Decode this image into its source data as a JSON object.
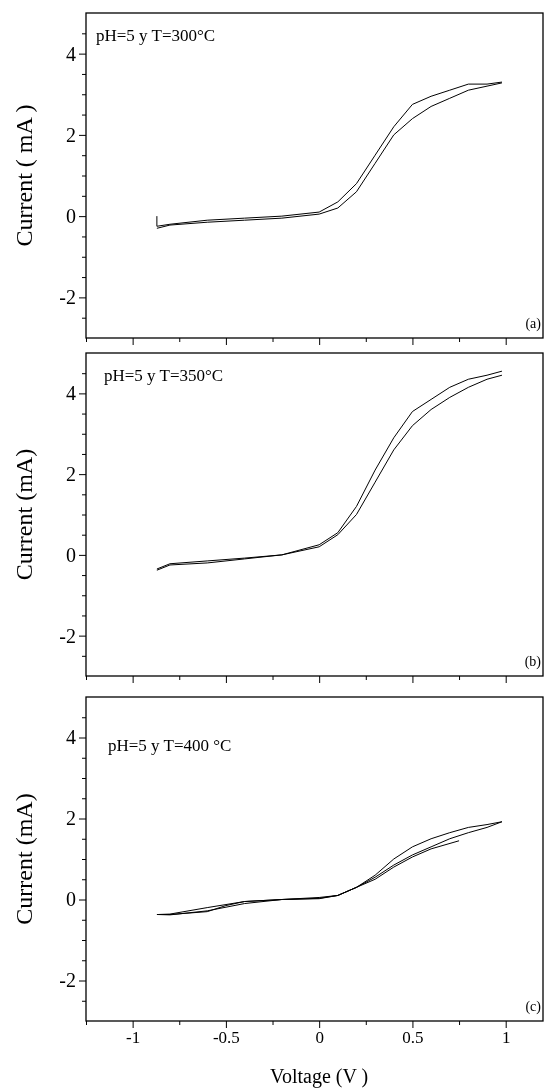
{
  "chart_data": [
    {
      "type": "line",
      "ylabel": "Current ( mA )",
      "annotations": [
        "pH=5 y T=300°C",
        "(a)"
      ],
      "xlim": [
        -1.25,
        1.2
      ],
      "ylim": [
        -3,
        5
      ],
      "xticks": [
        {
          "value": -1.25,
          "label": null
        },
        {
          "value": -1,
          "label": null
        },
        {
          "value": -0.75,
          "label": null
        },
        {
          "value": -0.5,
          "label": null
        },
        {
          "value": -0.25,
          "label": null
        },
        {
          "value": 0,
          "label": null
        },
        {
          "value": 0.25,
          "label": null
        },
        {
          "value": 0.5,
          "label": null
        },
        {
          "value": 0.75,
          "label": null
        },
        {
          "value": 1,
          "label": null
        }
      ],
      "yticks": [
        {
          "value": -2.5,
          "label": null
        },
        -2,
        {
          "value": -1.5,
          "label": null
        },
        {
          "value": -1,
          "label": null
        },
        {
          "value": -0.5,
          "label": null
        },
        0,
        {
          "value": 0.5,
          "label": null
        },
        {
          "value": 1,
          "label": null
        },
        {
          "value": 1.5,
          "label": null
        },
        2,
        {
          "value": 2.5,
          "label": null
        },
        {
          "value": 3,
          "label": null
        },
        {
          "value": 3.5,
          "label": null
        },
        4,
        {
          "value": 4.5,
          "label": null
        }
      ],
      "tick_labels": "y",
      "marker": "none",
      "line_style": "solid",
      "series": [
        {
          "color": "#000000",
          "x": [
            -0.87,
            -0.8,
            -0.6,
            -0.4,
            -0.2,
            0,
            0.1,
            0.2,
            0.3,
            0.4,
            0.5,
            0.6,
            0.7,
            0.8,
            0.9,
            0.98
          ],
          "values": [
            -0.3,
            -0.22,
            -0.15,
            -0.1,
            -0.05,
            0.05,
            0.2,
            0.6,
            1.3,
            2.0,
            2.4,
            2.7,
            2.9,
            3.1,
            3.2,
            3.28
          ]
        },
        {
          "color": "#000000",
          "x": [
            0.98,
            0.9,
            0.8,
            0.7,
            0.6,
            0.5,
            0.4,
            0.3,
            0.2,
            0.1,
            0,
            -0.2,
            -0.4,
            -0.6,
            -0.8,
            -0.87,
            -0.87
          ],
          "values": [
            3.3,
            3.25,
            3.25,
            3.1,
            2.95,
            2.75,
            2.2,
            1.5,
            0.8,
            0.35,
            0.1,
            0,
            -0.05,
            -0.1,
            -0.2,
            -0.25,
            0
          ]
        }
      ]
    },
    {
      "type": "line",
      "ylabel": "Current (mA)",
      "annotations": [
        "pH=5 y T=350°C",
        "(b)"
      ],
      "xlim": [
        -1.25,
        1.2
      ],
      "ylim": [
        -3,
        5
      ],
      "xticks": [
        {
          "value": -1.25,
          "label": null
        },
        {
          "value": -1,
          "label": null
        },
        {
          "value": -0.75,
          "label": null
        },
        {
          "value": -0.5,
          "label": null
        },
        {
          "value": -0.25,
          "label": null
        },
        {
          "value": 0,
          "label": null
        },
        {
          "value": 0.25,
          "label": null
        },
        {
          "value": 0.5,
          "label": null
        },
        {
          "value": 0.75,
          "label": null
        },
        {
          "value": 1,
          "label": null
        }
      ],
      "yticks": [
        {
          "value": -2.5,
          "label": null
        },
        -2,
        {
          "value": -1.5,
          "label": null
        },
        {
          "value": -1,
          "label": null
        },
        {
          "value": -0.5,
          "label": null
        },
        0,
        {
          "value": 0.5,
          "label": null
        },
        {
          "value": 1,
          "label": null
        },
        {
          "value": 1.5,
          "label": null
        },
        2,
        {
          "value": 2.5,
          "label": null
        },
        {
          "value": 3,
          "label": null
        },
        {
          "value": 3.5,
          "label": null
        },
        4,
        {
          "value": 4.5,
          "label": null
        }
      ],
      "tick_labels": "y",
      "marker": "none",
      "line_style": "solid",
      "series": [
        {
          "color": "#000000",
          "x": [
            -0.87,
            -0.8,
            -0.6,
            -0.4,
            -0.2,
            0,
            0.1,
            0.2,
            0.3,
            0.4,
            0.5,
            0.6,
            0.7,
            0.8,
            0.9,
            0.98
          ],
          "values": [
            -0.38,
            -0.25,
            -0.2,
            -0.1,
            0,
            0.2,
            0.5,
            1.0,
            1.8,
            2.6,
            3.2,
            3.6,
            3.9,
            4.15,
            4.35,
            4.45
          ]
        },
        {
          "color": "#000000",
          "x": [
            0.98,
            0.9,
            0.8,
            0.7,
            0.6,
            0.5,
            0.4,
            0.3,
            0.2,
            0.1,
            0,
            -0.2,
            -0.4,
            -0.6,
            -0.8,
            -0.87
          ],
          "values": [
            4.55,
            4.45,
            4.35,
            4.15,
            3.85,
            3.55,
            2.9,
            2.1,
            1.2,
            0.55,
            0.25,
            0,
            -0.08,
            -0.15,
            -0.22,
            -0.35
          ]
        }
      ]
    },
    {
      "type": "line",
      "xlabel": "Voltage (V )",
      "ylabel": "Current (mA)",
      "annotations": [
        "pH=5 y T=400 °C",
        "(c)"
      ],
      "xlim": [
        -1.25,
        1.2
      ],
      "ylim": [
        -3,
        5
      ],
      "xticks": [
        {
          "value": -1.25,
          "label": null
        },
        -1,
        {
          "value": -0.75,
          "label": null
        },
        -0.5,
        {
          "value": -0.25,
          "label": null
        },
        0,
        {
          "value": 0.25,
          "label": null
        },
        0.5,
        {
          "value": 0.75,
          "label": null
        },
        1
      ],
      "yticks": [
        {
          "value": -2.5,
          "label": null
        },
        -2,
        {
          "value": -1.5,
          "label": null
        },
        {
          "value": -1,
          "label": null
        },
        {
          "value": -0.5,
          "label": null
        },
        0,
        {
          "value": 0.5,
          "label": null
        },
        {
          "value": 1,
          "label": null
        },
        {
          "value": 1.5,
          "label": null
        },
        2,
        {
          "value": 2.5,
          "label": null
        },
        {
          "value": 3,
          "label": null
        },
        {
          "value": 3.5,
          "label": null
        },
        4,
        {
          "value": 4.5,
          "label": null
        }
      ],
      "marker": "none",
      "line_style": "solid",
      "series": [
        {
          "color": "#000000",
          "x": [
            -0.87,
            -0.8,
            -0.6,
            -0.4,
            -0.2,
            0,
            0.1,
            0.2,
            0.3,
            0.4,
            0.5,
            0.6,
            0.7,
            0.8,
            0.9,
            0.98,
            0.9,
            0.8,
            0.7,
            0.6,
            0.5,
            0.4,
            0.3,
            0.2,
            0.1,
            0,
            -0.2,
            -0.4,
            -0.6,
            -0.8,
            -0.86,
            -0.8,
            -0.6,
            -0.5,
            -0.4,
            -0.2,
            0,
            0.1,
            0.2,
            0.3,
            0.4,
            0.5,
            0.6,
            0.75
          ],
          "values": [
            -0.37,
            -0.38,
            -0.28,
            -0.1,
            0,
            0.02,
            0.1,
            0.3,
            0.55,
            0.85,
            1.1,
            1.3,
            1.5,
            1.65,
            1.78,
            1.92,
            1.85,
            1.78,
            1.65,
            1.5,
            1.3,
            1.0,
            0.6,
            0.3,
            0.1,
            0.05,
            0,
            -0.05,
            -0.2,
            -0.36,
            -0.37,
            -0.37,
            -0.3,
            -0.15,
            -0.05,
            0,
            0.03,
            0.1,
            0.3,
            0.5,
            0.8,
            1.05,
            1.25,
            1.45
          ]
        }
      ]
    }
  ]
}
